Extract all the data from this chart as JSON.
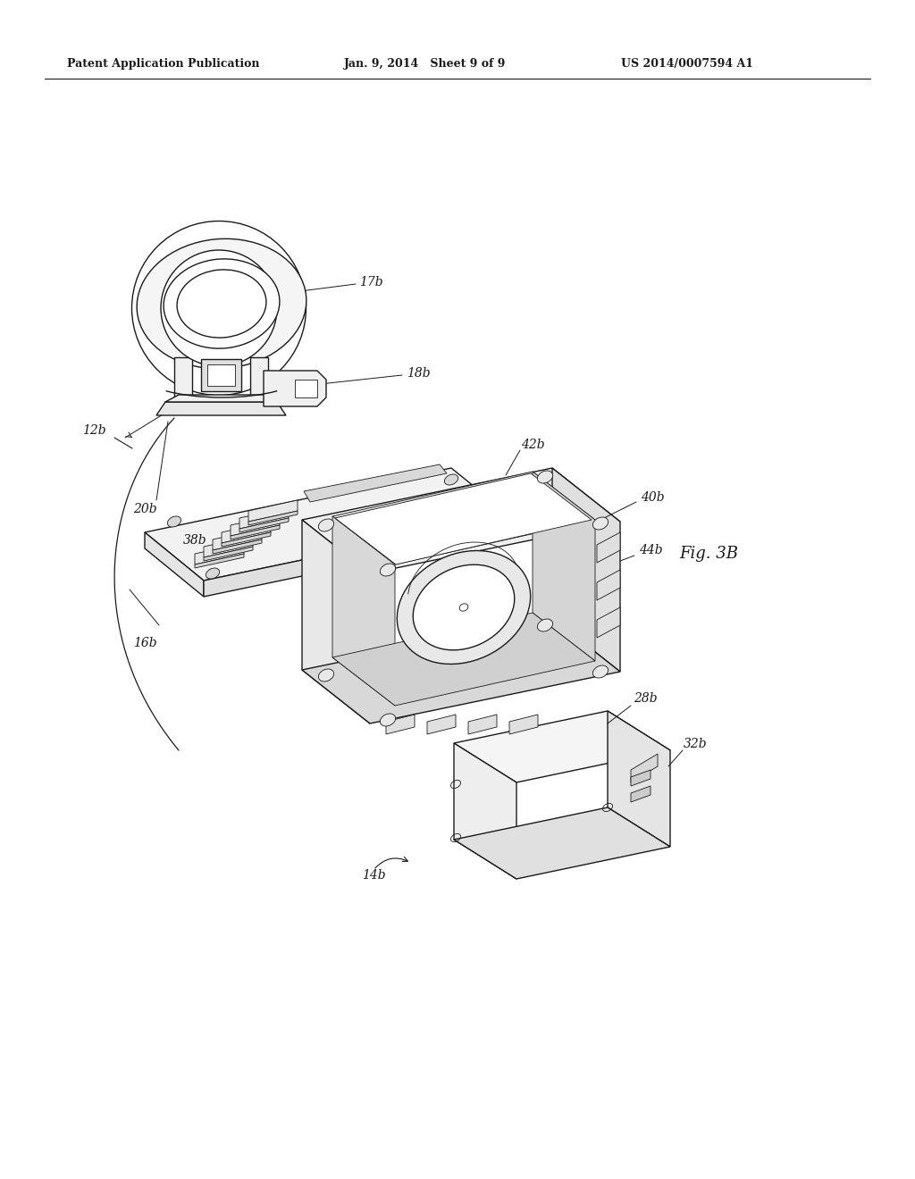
{
  "bg_color": "#ffffff",
  "line_color": "#1a1a1a",
  "header_left": "Patent Application Publication",
  "header_mid": "Jan. 9, 2014   Sheet 9 of 9",
  "header_right": "US 2014/0007594 A1",
  "fig_label": "Fig. 3B",
  "lw": 1.0,
  "lwt": 0.6,
  "figsize": [
    10.24,
    13.2
  ],
  "dpi": 100
}
